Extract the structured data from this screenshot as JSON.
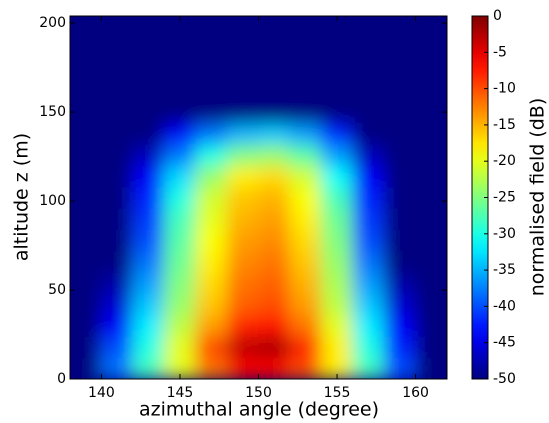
{
  "chart_data": {
    "type": "heatmap",
    "x_label": "azimuthal angle (degree)",
    "y_label": "altitude z (m)",
    "colorbar_label": "normalised field (dB)",
    "colormap": "jet",
    "xbins": [
      138,
      140,
      142,
      144,
      146,
      148,
      150,
      152,
      154,
      156,
      158,
      160,
      162
    ],
    "ybins": [
      0,
      12,
      24,
      36,
      48,
      60,
      72,
      84,
      96,
      108,
      120,
      132,
      144,
      156,
      168,
      180,
      192,
      204
    ],
    "values": [
      [
        -50,
        -38,
        -28,
        -20,
        -12,
        -6,
        -6,
        -10,
        -18,
        -28,
        -40,
        -50
      ],
      [
        -50,
        -40,
        -30,
        -20,
        -10,
        -3,
        -2,
        -8,
        -18,
        -30,
        -42,
        -50
      ],
      [
        -50,
        -44,
        -32,
        -22,
        -14,
        -8,
        -7,
        -12,
        -20,
        -32,
        -44,
        -50
      ],
      [
        -50,
        -46,
        -34,
        -24,
        -16,
        -11,
        -10,
        -14,
        -22,
        -34,
        -46,
        -50
      ],
      [
        -50,
        -48,
        -36,
        -25,
        -17,
        -12,
        -11,
        -15,
        -23,
        -36,
        -48,
        -50
      ],
      [
        -50,
        -50,
        -38,
        -26,
        -18,
        -13,
        -12,
        -16,
        -24,
        -38,
        -50,
        -50
      ],
      [
        -50,
        -50,
        -40,
        -27,
        -19,
        -14,
        -13,
        -17,
        -25,
        -40,
        -50,
        -50
      ],
      [
        -50,
        -50,
        -41,
        -28,
        -20,
        -15,
        -14,
        -18,
        -26,
        -41,
        -50,
        -50
      ],
      [
        -50,
        -50,
        -42,
        -30,
        -21,
        -16,
        -15,
        -19,
        -28,
        -42,
        -50,
        -50
      ],
      [
        -50,
        -50,
        -44,
        -33,
        -24,
        -18,
        -17,
        -21,
        -31,
        -44,
        -50,
        -50
      ],
      [
        -50,
        -50,
        -47,
        -38,
        -30,
        -25,
        -24,
        -27,
        -36,
        -47,
        -50,
        -50
      ],
      [
        -50,
        -50,
        -50,
        -44,
        -38,
        -35,
        -34,
        -36,
        -42,
        -50,
        -50,
        -50
      ],
      [
        -50,
        -50,
        -50,
        -50,
        -50,
        -50,
        -50,
        -50,
        -50,
        -50,
        -50,
        -50
      ],
      [
        -50,
        -50,
        -50,
        -50,
        -50,
        -50,
        -50,
        -50,
        -50,
        -50,
        -50,
        -50
      ],
      [
        -50,
        -50,
        -50,
        -50,
        -50,
        -50,
        -50,
        -50,
        -50,
        -50,
        -50,
        -50
      ],
      [
        -50,
        -50,
        -50,
        -50,
        -50,
        -50,
        -50,
        -50,
        -50,
        -50,
        -50,
        -50
      ],
      [
        -50,
        -50,
        -50,
        -50,
        -50,
        -50,
        -50,
        -50,
        -50,
        -50,
        -50,
        -50
      ]
    ],
    "xlim": [
      138,
      162
    ],
    "ylim": [
      0,
      204
    ],
    "xticks": [
      140,
      145,
      150,
      155,
      160
    ],
    "yticks": [
      0,
      50,
      100,
      150,
      200
    ],
    "clim": [
      -50,
      0
    ],
    "cticks": [
      0,
      -5,
      -10,
      -15,
      -20,
      -25,
      -30,
      -35,
      -40,
      -45,
      -50
    ],
    "grid": false
  }
}
